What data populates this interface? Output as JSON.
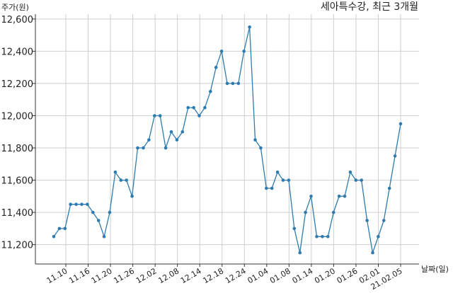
{
  "chart_data": {
    "type": "line",
    "title": "세아특수강, 최근 3개월",
    "ylabel": "주가(원)",
    "xlabel": "날짜(일)",
    "ylim": [
      11080,
      12630
    ],
    "yticks": [
      11200,
      11400,
      11600,
      11800,
      12000,
      12200,
      12400,
      12600
    ],
    "ytick_labels": [
      "11,200",
      "11,400",
      "11,600",
      "11,800",
      "12,000",
      "12,200",
      "12,400",
      "12,600"
    ],
    "xtick_labels": [
      "11.10",
      "11.16",
      "11.20",
      "11.26",
      "12.02",
      "12.08",
      "12.14",
      "12.18",
      "12.24",
      "01.04",
      "01.08",
      "01.14",
      "01.20",
      "01.26",
      "02.01",
      "21.02.05"
    ],
    "grid": true,
    "color": "#2e7bb0",
    "series": [
      {
        "values": [
          11250,
          11300,
          11300,
          11450,
          11450,
          11450,
          11450,
          11400,
          11350,
          11250,
          11400,
          11650,
          11600,
          11600,
          11500,
          11800,
          11800,
          11850,
          12000,
          12000,
          11800,
          11900,
          11850,
          11900,
          12050,
          12050,
          12000,
          12050,
          12150,
          12300,
          12400,
          12200,
          12200,
          12200,
          12400,
          12550,
          11850,
          11800,
          11550,
          11550,
          11650,
          11600,
          11600,
          11300,
          11150,
          11400,
          11500,
          11250,
          11250,
          11250,
          11400,
          11500,
          11500,
          11650,
          11600,
          11600,
          11350,
          11150,
          11250,
          11350,
          11550,
          11750,
          11950
        ]
      }
    ]
  }
}
